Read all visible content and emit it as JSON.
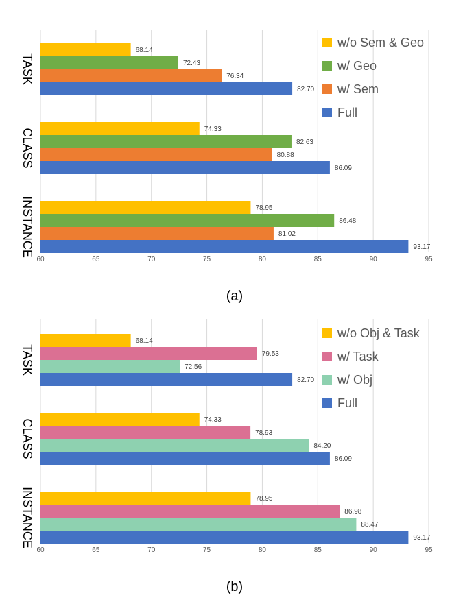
{
  "chart_data": [
    {
      "type": "bar",
      "orientation": "horizontal",
      "caption": "(a)",
      "categories": [
        "TASK",
        "CLASS",
        "INSTANCE"
      ],
      "xlim": [
        60,
        95
      ],
      "xticks": [
        60,
        65,
        70,
        75,
        80,
        85,
        90,
        95
      ],
      "grid": true,
      "legend_position": "top-right",
      "series": [
        {
          "name": "w/o Sem & Geo",
          "color": "#FFC000",
          "values": [
            68.14,
            74.33,
            78.95
          ],
          "labels": [
            "68.14",
            "74.33",
            "78.95"
          ]
        },
        {
          "name": "w/ Geo",
          "color": "#70AD47",
          "values": [
            72.43,
            82.63,
            86.48
          ],
          "labels": [
            "72.43",
            "82.63",
            "86.48"
          ]
        },
        {
          "name": "w/ Sem",
          "color": "#ED7D31",
          "values": [
            76.34,
            80.88,
            81.02
          ],
          "labels": [
            "76.34",
            "80.88",
            "81.02"
          ]
        },
        {
          "name": "Full",
          "color": "#4472C4",
          "values": [
            82.7,
            86.09,
            93.17
          ],
          "labels": [
            "82.70",
            "86.09",
            "93.17"
          ]
        }
      ]
    },
    {
      "type": "bar",
      "orientation": "horizontal",
      "caption": "(b)",
      "categories": [
        "TASK",
        "CLASS",
        "INSTANCE"
      ],
      "xlim": [
        60,
        95
      ],
      "xticks": [
        60,
        65,
        70,
        75,
        80,
        85,
        90,
        95
      ],
      "grid": true,
      "legend_position": "top-right",
      "series": [
        {
          "name": "w/o Obj & Task",
          "color": "#FFC000",
          "values": [
            68.14,
            74.33,
            78.95
          ],
          "labels": [
            "68.14",
            "74.33",
            "78.95"
          ]
        },
        {
          "name": "w/ Task",
          "color": "#DB7093",
          "values": [
            79.53,
            78.93,
            86.98
          ],
          "labels": [
            "79.53",
            "78.93",
            "86.98"
          ]
        },
        {
          "name": "w/ Obj",
          "color": "#8ED1B0",
          "values": [
            72.56,
            84.2,
            88.47
          ],
          "labels": [
            "72.56",
            "84.20",
            "88.47"
          ]
        },
        {
          "name": "Full",
          "color": "#4472C4",
          "values": [
            82.7,
            86.09,
            93.17
          ],
          "labels": [
            "82.70",
            "86.09",
            "93.17"
          ]
        }
      ]
    }
  ]
}
